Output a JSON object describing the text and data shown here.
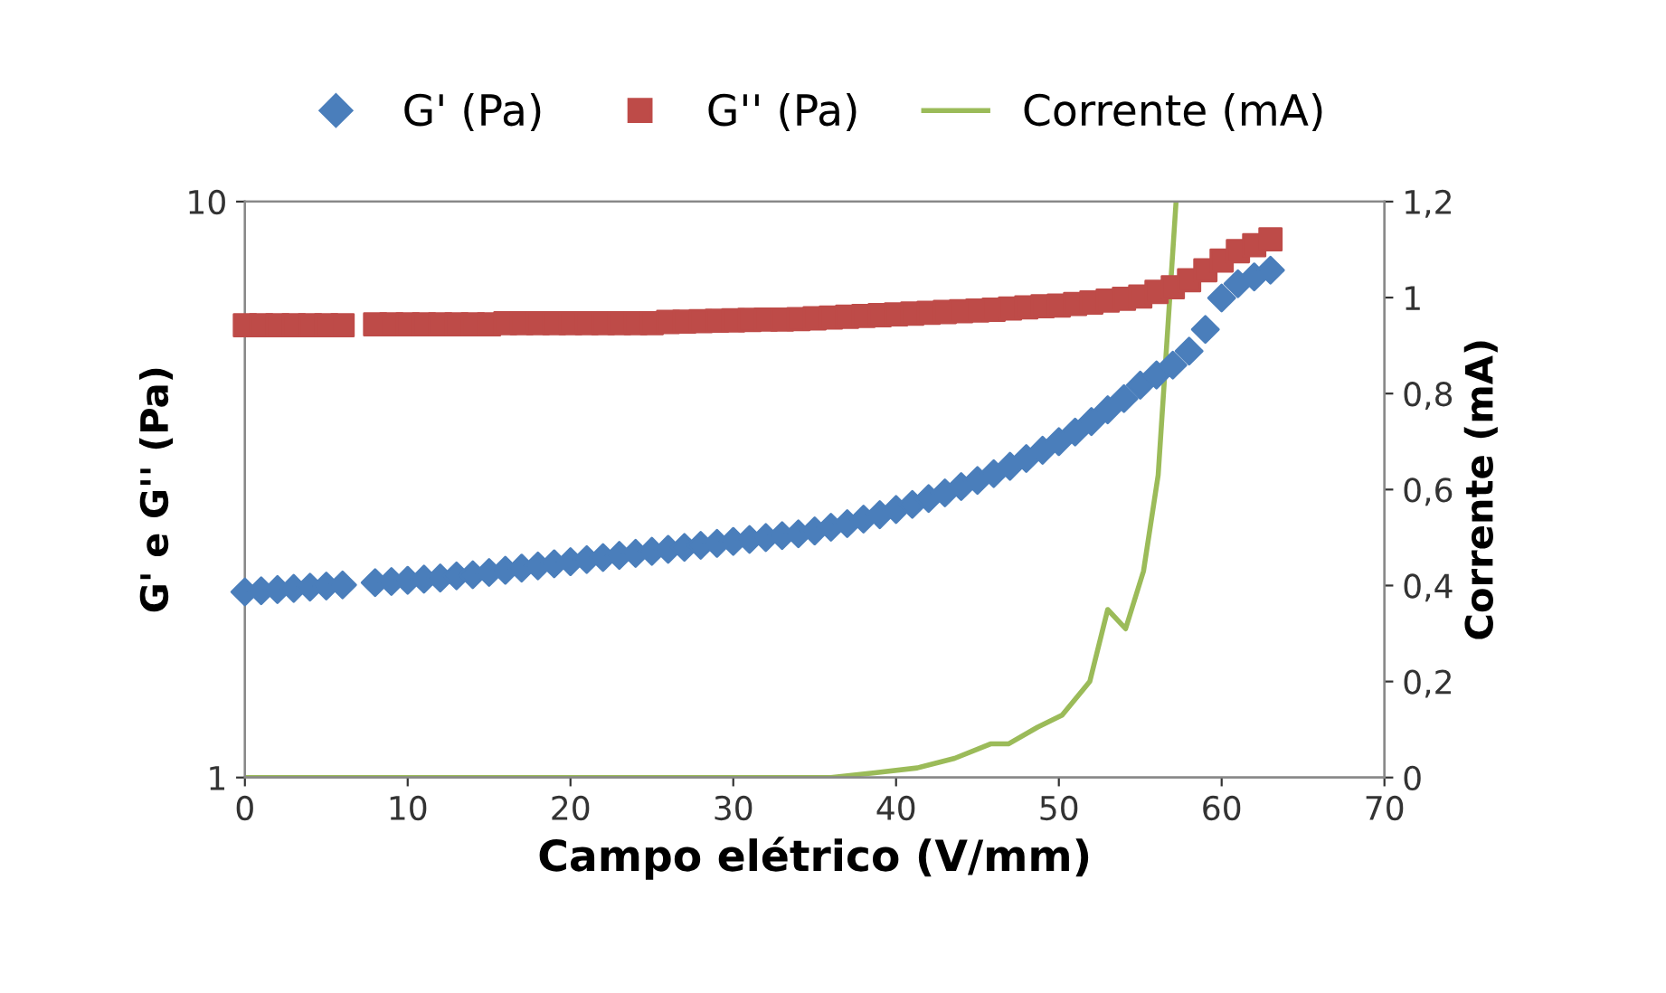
{
  "chart_data": {
    "type": "scatter",
    "xlabel": "Campo elétrico (V/mm)",
    "ylabel": "G' e G'' (Pa)",
    "y2label": "Corrente (mA)",
    "log": "y",
    "xlim": [
      0,
      70
    ],
    "xticks": [
      0,
      10,
      20,
      30,
      40,
      50,
      60,
      70
    ],
    "ylim": [
      1,
      10
    ],
    "yticks": [
      1,
      10
    ],
    "y2lim": [
      0,
      1.2
    ],
    "y2ticks": [
      {
        "value": 0,
        "label": "0"
      },
      {
        "value": 0.2,
        "label": "0,2"
      },
      {
        "value": 0.4,
        "label": "0,4"
      },
      {
        "value": 0.6,
        "label": "0,6"
      },
      {
        "value": 0.8,
        "label": "0,8"
      },
      {
        "value": 1,
        "label": "1"
      },
      {
        "value": 1.2,
        "label": "1,2"
      }
    ],
    "grid": false,
    "legend": "top",
    "series": [
      {
        "name": "G' (Pa)",
        "marker": "diamond",
        "color": "#4a7ebb",
        "x": [
          0,
          1,
          2,
          3,
          4,
          5,
          6,
          8,
          9,
          10,
          11,
          12,
          13,
          14,
          15,
          16,
          17,
          18,
          19,
          20,
          21,
          22,
          23,
          24,
          25,
          26,
          27,
          28,
          29,
          30,
          31,
          32,
          33,
          34,
          35,
          36,
          37,
          38,
          39,
          40,
          41,
          42,
          43,
          44,
          45,
          46,
          47,
          48,
          49,
          50,
          51,
          52,
          53,
          54,
          55,
          56,
          57,
          58,
          59,
          60,
          61,
          62,
          63
        ],
        "values": [
          2.1,
          2.11,
          2.12,
          2.13,
          2.14,
          2.15,
          2.16,
          2.18,
          2.19,
          2.2,
          2.21,
          2.22,
          2.24,
          2.25,
          2.27,
          2.29,
          2.31,
          2.33,
          2.35,
          2.37,
          2.39,
          2.41,
          2.43,
          2.45,
          2.47,
          2.49,
          2.51,
          2.53,
          2.55,
          2.57,
          2.59,
          2.61,
          2.63,
          2.65,
          2.68,
          2.72,
          2.76,
          2.81,
          2.86,
          2.92,
          2.98,
          3.05,
          3.12,
          3.2,
          3.28,
          3.37,
          3.47,
          3.58,
          3.7,
          3.83,
          3.98,
          4.15,
          4.35,
          4.55,
          4.8,
          5.0,
          5.2,
          5.5,
          6.0,
          6.8,
          7.2,
          7.4,
          7.6
        ]
      },
      {
        "name": "G'' (Pa)",
        "marker": "square",
        "color": "#be4b48",
        "x": [
          0,
          1,
          2,
          3,
          4,
          5,
          6,
          8,
          9,
          10,
          11,
          12,
          13,
          14,
          15,
          16,
          17,
          18,
          19,
          20,
          21,
          22,
          23,
          24,
          25,
          26,
          27,
          28,
          29,
          30,
          31,
          32,
          33,
          34,
          35,
          36,
          37,
          38,
          39,
          40,
          41,
          42,
          43,
          44,
          45,
          46,
          47,
          48,
          49,
          50,
          51,
          52,
          53,
          54,
          55,
          56,
          57,
          58,
          59,
          60,
          61,
          62,
          63
        ],
        "values": [
          6.1,
          6.1,
          6.1,
          6.1,
          6.1,
          6.1,
          6.1,
          6.12,
          6.12,
          6.12,
          6.12,
          6.12,
          6.12,
          6.12,
          6.12,
          6.15,
          6.15,
          6.15,
          6.15,
          6.15,
          6.15,
          6.15,
          6.15,
          6.15,
          6.15,
          6.18,
          6.19,
          6.2,
          6.21,
          6.22,
          6.23,
          6.24,
          6.24,
          6.25,
          6.27,
          6.29,
          6.31,
          6.33,
          6.35,
          6.37,
          6.39,
          6.41,
          6.43,
          6.45,
          6.47,
          6.49,
          6.52,
          6.55,
          6.58,
          6.6,
          6.64,
          6.68,
          6.73,
          6.78,
          6.84,
          6.97,
          7.1,
          7.3,
          7.6,
          7.9,
          8.2,
          8.4,
          8.6
        ]
      },
      {
        "name": "Corrente (mA)",
        "type": "line",
        "axis": "y2",
        "marker": "none",
        "line_style": "solid",
        "color": "#9bbb59",
        "x": [
          0,
          10,
          20,
          30,
          36,
          38.7,
          41.3,
          43.6,
          45.8,
          46.9,
          48.7,
          50.2,
          51.9,
          53,
          54.1,
          55.2,
          56.1,
          57.2
        ],
        "values": [
          0,
          0,
          0,
          0,
          0,
          0.01,
          0.02,
          0.04,
          0.07,
          0.07,
          0.105,
          0.13,
          0.2,
          0.35,
          0.31,
          0.43,
          0.63,
          1.2
        ]
      }
    ]
  }
}
